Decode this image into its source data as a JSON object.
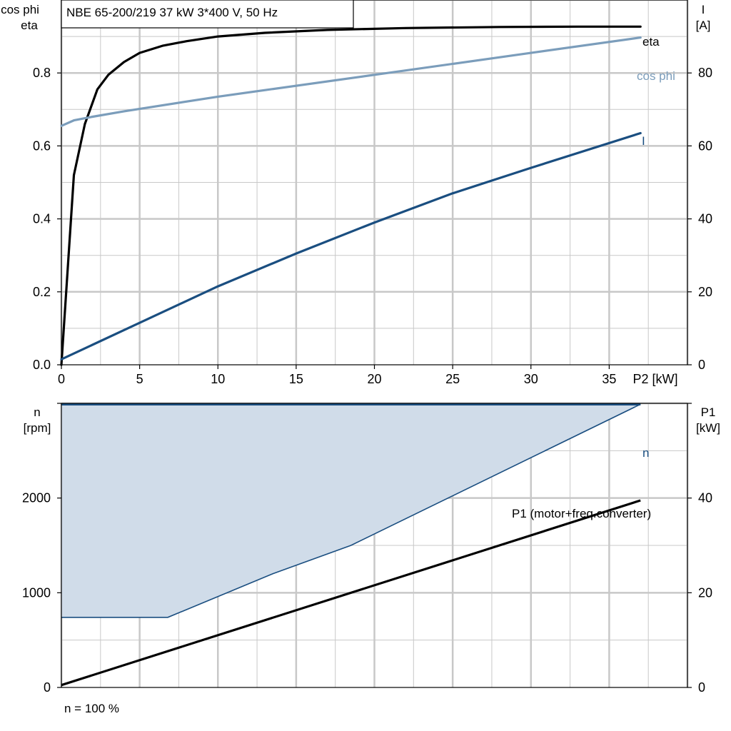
{
  "title_box": "NBE 65-200/219   37 kW   3*400 V, 50 Hz",
  "footer_note": "n = 100 %",
  "colors": {
    "eta": "#000000",
    "cos_phi": "#7b9dbb",
    "current": "#1a4e80",
    "speed": "#1a4e80",
    "speed_fill": "#d0dce9",
    "p1": "#000000",
    "grid": "#c8c8c8"
  },
  "chart_data": [
    {
      "type": "line",
      "title": "NBE 65-200/219   37 kW   3*400 V, 50 Hz",
      "xlabel": "P2 [kW]",
      "ylabel_left": [
        "cos phi",
        "eta"
      ],
      "ylabel_right": [
        "I",
        "[A]"
      ],
      "xlim": [
        0,
        40
      ],
      "ylim_left": [
        0,
        1.0
      ],
      "ylim_right": [
        0,
        100
      ],
      "x_ticks": [
        0,
        5,
        10,
        15,
        20,
        25,
        30,
        35
      ],
      "y_ticks_left": [
        "0.0",
        "0.2",
        "0.4",
        "0.6",
        "0.8"
      ],
      "y_ticks_right": [
        "0",
        "20",
        "40",
        "60",
        "80"
      ],
      "grid": true,
      "series": [
        {
          "name": "eta",
          "axis": "left",
          "x": [
            0,
            0.8,
            1.5,
            2.3,
            3,
            4,
            5,
            6.5,
            8,
            10,
            13,
            17,
            22,
            28,
            33,
            37
          ],
          "y": [
            0,
            0.52,
            0.66,
            0.755,
            0.795,
            0.83,
            0.855,
            0.875,
            0.887,
            0.9,
            0.91,
            0.918,
            0.923,
            0.926,
            0.927,
            0.927
          ]
        },
        {
          "name": "cos phi",
          "axis": "left",
          "x": [
            0,
            0.8,
            2,
            4,
            10,
            20,
            30,
            37
          ],
          "y": [
            0.655,
            0.67,
            0.68,
            0.695,
            0.735,
            0.795,
            0.855,
            0.897
          ]
        },
        {
          "name": "I",
          "axis": "right",
          "x": [
            0,
            5,
            10,
            15,
            20,
            25,
            30,
            37
          ],
          "y": [
            1.5,
            11.5,
            21.5,
            30.5,
            39,
            47,
            54,
            63.5
          ]
        }
      ]
    },
    {
      "type": "area",
      "xlim": [
        0,
        40
      ],
      "ylabel_left": [
        "n",
        "[rpm]"
      ],
      "ylabel_right": [
        "P1",
        "[kW]"
      ],
      "ylim_left": [
        0,
        3000
      ],
      "ylim_right": [
        0,
        60
      ],
      "y_ticks_left": [
        "0",
        "1000",
        "2000"
      ],
      "y_ticks_right": [
        "0",
        "20",
        "40"
      ],
      "grid": true,
      "series": [
        {
          "name": "n",
          "axis": "left",
          "kind": "band",
          "upper": {
            "x": [
              0,
              37
            ],
            "y": [
              2990,
              2990
            ]
          },
          "lower": {
            "x": [
              0,
              6.8,
              13.5,
              18.5,
              37
            ],
            "y": [
              740,
              740,
              1200,
              1500,
              2990
            ]
          }
        },
        {
          "name": "P1 (motor+freq.converter)",
          "axis": "right",
          "x": [
            0,
            37
          ],
          "y": [
            0.5,
            39.5
          ]
        }
      ]
    }
  ]
}
